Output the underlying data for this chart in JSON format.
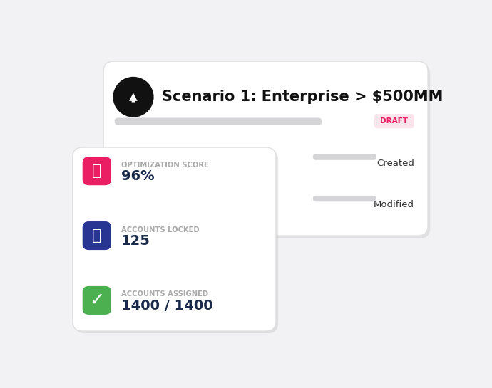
{
  "bg_color": "#f2f2f5",
  "card_bg": "#ffffff",
  "title": "Scenario 1: Enterprise > $500MM",
  "title_fontsize": 15,
  "rocket_icon_bg": "#111111",
  "draft_label": "DRAFT",
  "draft_bg": "#fce4ec",
  "draft_color": "#e91e63",
  "progress_bar_color": "#d5d5d8",
  "created_label": "Created",
  "modified_label": "Modified",
  "stats": [
    {
      "icon_bg": "#e91e63",
      "label": "OPTIMIZATION SCORE",
      "value": "96%",
      "label_color": "#aaaaaa",
      "value_color": "#1a2a4a"
    },
    {
      "icon_bg": "#283593",
      "label": "ACCOUNTS LOCKED",
      "value": "125",
      "label_color": "#aaaaaa",
      "value_color": "#1a2a4a"
    },
    {
      "icon_bg": "#4caf50",
      "label": "ACCOUNTS ASSIGNED",
      "value": "1400 / 1400",
      "label_color": "#aaaaaa",
      "value_color": "#1a2a4a"
    }
  ]
}
